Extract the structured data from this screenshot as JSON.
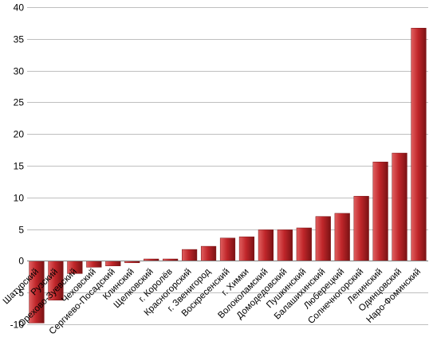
{
  "chart_data": {
    "type": "bar",
    "categories": [
      "Шатурский",
      "Рузский",
      "Орехово-Зуевский",
      "Чеховский",
      "Сергиево-Посадский",
      "Клинский",
      "Щелковский",
      "г. Королёв",
      "Красногорский",
      "г. Звенигород",
      "Воскресенский",
      "г. Химки",
      "Волоколамский",
      "Домодедовский",
      "Пушкинский",
      "Балашихинский",
      "Люберецкий",
      "Солнечногорский",
      "Ленинский",
      "Одинцовский",
      "Наро-Фоминский"
    ],
    "values": [
      -9.8,
      -6.2,
      -2.0,
      -1.0,
      -0.8,
      -0.3,
      0.3,
      0.3,
      1.8,
      2.3,
      3.6,
      3.8,
      4.9,
      4.9,
      5.2,
      7.0,
      7.5,
      10.2,
      15.6,
      17.0,
      36.7
    ],
    "ylim": [
      -10,
      40
    ],
    "yticks": [
      -10,
      -5,
      0,
      5,
      10,
      15,
      20,
      25,
      30,
      35,
      40
    ],
    "grid": true,
    "legend": "none",
    "colors": {
      "bar_top": "#e06060",
      "bar_mid": "#c0262a",
      "bar_dark": "#7a1214",
      "grid": "#bfbfbf"
    }
  }
}
